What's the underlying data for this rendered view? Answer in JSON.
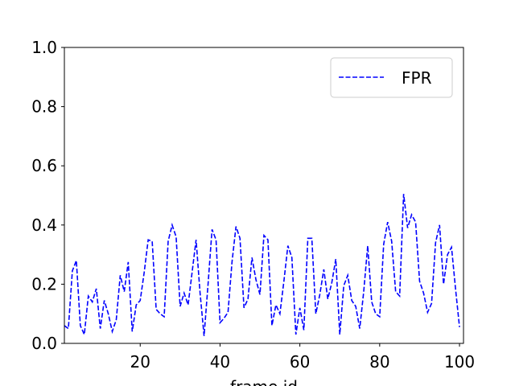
{
  "chart_data": {
    "type": "line",
    "xlabel": "frame id",
    "x": [
      1,
      2,
      3,
      4,
      5,
      6,
      7,
      8,
      9,
      10,
      11,
      12,
      13,
      14,
      15,
      16,
      17,
      18,
      19,
      20,
      21,
      22,
      23,
      24,
      25,
      26,
      27,
      28,
      29,
      30,
      31,
      32,
      33,
      34,
      35,
      36,
      37,
      38,
      39,
      40,
      41,
      42,
      43,
      44,
      45,
      46,
      47,
      48,
      49,
      50,
      51,
      52,
      53,
      54,
      55,
      56,
      57,
      58,
      59,
      60,
      61,
      62,
      63,
      64,
      65,
      66,
      67,
      68,
      69,
      70,
      71,
      72,
      73,
      74,
      75,
      76,
      77,
      78,
      79,
      80,
      81,
      82,
      83,
      84,
      85,
      86,
      87,
      88,
      89,
      90,
      91,
      92,
      93,
      94,
      95,
      96,
      97,
      98,
      99,
      100
    ],
    "series": [
      {
        "name": "FPR",
        "color": "#0000ff",
        "dashed": true,
        "values": [
          0.06,
          0.05,
          0.245,
          0.28,
          0.06,
          0.03,
          0.16,
          0.14,
          0.185,
          0.05,
          0.145,
          0.1,
          0.04,
          0.08,
          0.23,
          0.175,
          0.275,
          0.04,
          0.13,
          0.145,
          0.24,
          0.35,
          0.345,
          0.115,
          0.1,
          0.09,
          0.345,
          0.4,
          0.36,
          0.125,
          0.17,
          0.13,
          0.24,
          0.35,
          0.17,
          0.025,
          0.2,
          0.385,
          0.35,
          0.07,
          0.085,
          0.105,
          0.275,
          0.395,
          0.355,
          0.12,
          0.15,
          0.29,
          0.215,
          0.165,
          0.365,
          0.35,
          0.06,
          0.13,
          0.1,
          0.21,
          0.33,
          0.29,
          0.03,
          0.12,
          0.045,
          0.355,
          0.355,
          0.1,
          0.165,
          0.25,
          0.15,
          0.205,
          0.285,
          0.03,
          0.195,
          0.23,
          0.145,
          0.125,
          0.05,
          0.175,
          0.33,
          0.14,
          0.1,
          0.09,
          0.335,
          0.41,
          0.345,
          0.175,
          0.16,
          0.505,
          0.39,
          0.435,
          0.41,
          0.21,
          0.17,
          0.105,
          0.135,
          0.34,
          0.4,
          0.2,
          0.3,
          0.325,
          0.185,
          0.055
        ]
      }
    ],
    "xlim": [
      1,
      101
    ],
    "ylim": [
      0,
      1
    ],
    "xticks": [
      20,
      40,
      60,
      80,
      100
    ],
    "yticks": [
      {
        "value": 0,
        "label": "0.0"
      },
      0.2,
      0.4,
      0.6,
      0.8,
      {
        "value": 1,
        "label": "1.0"
      }
    ],
    "legend": "upper right"
  }
}
